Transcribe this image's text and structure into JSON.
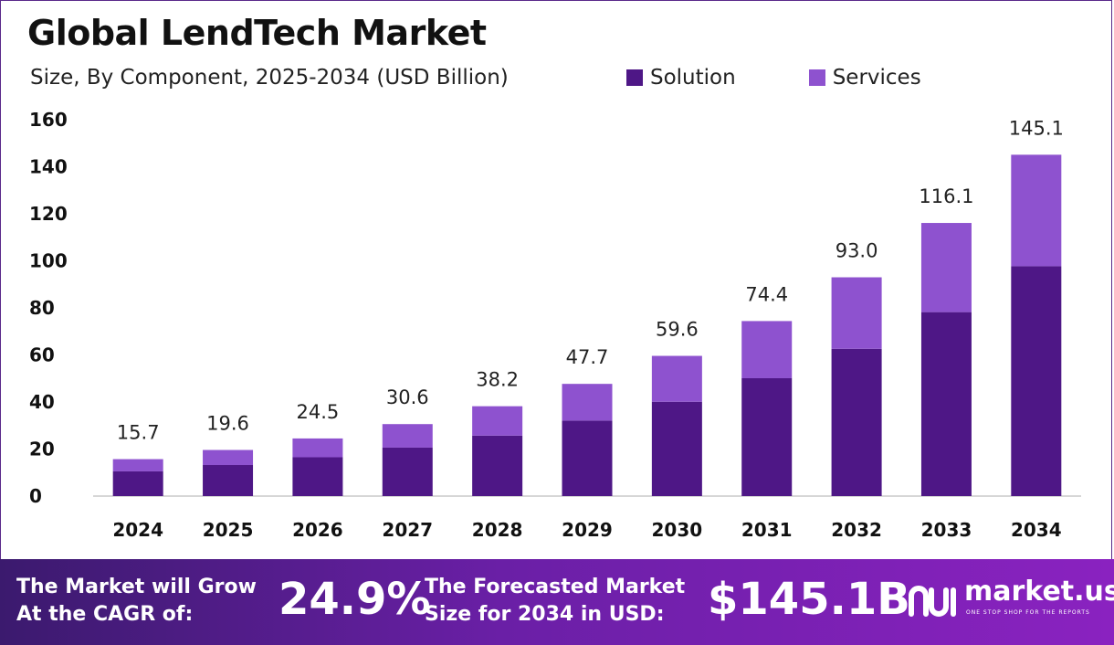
{
  "header": {
    "title": "Global LendTech Market",
    "subtitle": "Size, By Component, 2025-2034 (USD Billion)"
  },
  "colors": {
    "solution": "#4e1786",
    "services": "#8e52cf",
    "axis": "#c8c8c8",
    "footer_start": "#3b1a6e",
    "footer_end": "#8a22c0"
  },
  "chart_data": {
    "type": "bar",
    "stacked": true,
    "categories": [
      "2024",
      "2025",
      "2026",
      "2027",
      "2028",
      "2029",
      "2030",
      "2031",
      "2032",
      "2033",
      "2034"
    ],
    "series": [
      {
        "name": "Solution",
        "values": [
          10.5,
          13.2,
          16.5,
          20.6,
          25.7,
          32.1,
          40.1,
          50.1,
          62.6,
          78.2,
          97.7
        ]
      },
      {
        "name": "Services",
        "values": [
          5.2,
          6.4,
          8.0,
          10.0,
          12.5,
          15.6,
          19.5,
          24.3,
          30.4,
          37.9,
          47.4
        ]
      }
    ],
    "totals": [
      "15.7",
      "19.6",
      "24.5",
      "30.6",
      "38.2",
      "47.7",
      "59.6",
      "74.4",
      "93.0",
      "116.1",
      "145.1"
    ],
    "yticks": [
      "0",
      "20",
      "40",
      "60",
      "80",
      "100",
      "120",
      "140",
      "160"
    ],
    "ylim": [
      0,
      160
    ],
    "legend_position": "top-right",
    "grid": false
  },
  "footer": {
    "cagr_label_line1": "The Market will Grow",
    "cagr_label_line2": "At the CAGR of:",
    "cagr_value": "24.9%",
    "forecast_label_line1": "The Forecasted Market",
    "forecast_label_line2": "Size for 2034 in USD:",
    "forecast_value": "$145.1B",
    "brand_name": "market.us",
    "brand_tagline": "ONE STOP SHOP FOR THE REPORTS",
    "brand_icon": "market-us-logo-icon"
  }
}
